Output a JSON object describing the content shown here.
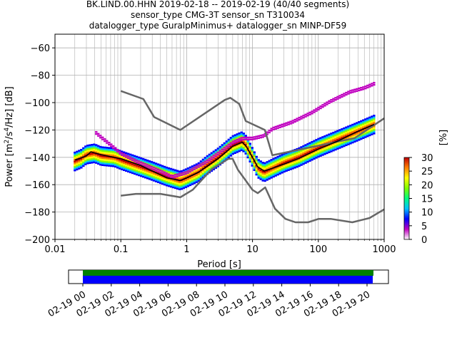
{
  "chart_data": {
    "type": "heatmap",
    "title": [
      "BK.LIND.00.HHN   2019-02-18 -- 2019-02-19  (40/40 segments)",
      "sensor_type CMG-3T sensor_sn T310034",
      "datalogger_type GuralpMinimus+ datalogger_sn MINP-DF59"
    ],
    "xlabel": "Period [s]",
    "ylabel": "Power [$m^2/s^4/Hz$] [dB]",
    "xscale": "log",
    "xlim": [
      0.01,
      1000
    ],
    "ylim": [
      -200,
      -50
    ],
    "grid": true,
    "xticks": [
      {
        "value": 0.01,
        "label": "0.01"
      },
      {
        "value": 0.1,
        "label": "0.1"
      },
      {
        "value": 1,
        "label": "1"
      },
      {
        "value": 10,
        "label": "10"
      },
      {
        "value": 100,
        "label": "100"
      },
      {
        "value": 1000,
        "label": "1000"
      }
    ],
    "yticks": [
      {
        "value": -200,
        "label": "−200"
      },
      {
        "value": -180,
        "label": "−180"
      },
      {
        "value": -160,
        "label": "−160"
      },
      {
        "value": -140,
        "label": "−140"
      },
      {
        "value": -120,
        "label": "−120"
      },
      {
        "value": -100,
        "label": "−100"
      },
      {
        "value": -80,
        "label": "−80"
      },
      {
        "value": -60,
        "label": "−60"
      }
    ],
    "noise_models": [
      {
        "name": "NHNM",
        "color": "#666666",
        "points": [
          [
            0.1,
            -91.5
          ],
          [
            0.22,
            -97.4
          ],
          [
            0.32,
            -110.5
          ],
          [
            0.8,
            -120
          ],
          [
            3.8,
            -98
          ],
          [
            4.6,
            -96.5
          ],
          [
            6.3,
            -101
          ],
          [
            7.9,
            -113.5
          ],
          [
            15.4,
            -120
          ],
          [
            20,
            -138.5
          ],
          [
            354.8,
            -126
          ],
          [
            1000,
            -111.5
          ]
        ]
      },
      {
        "name": "NLNM",
        "color": "#666666",
        "points": [
          [
            0.1,
            -168
          ],
          [
            0.17,
            -166.7
          ],
          [
            0.4,
            -166.7
          ],
          [
            0.8,
            -169.2
          ],
          [
            1.24,
            -163.7
          ],
          [
            2.4,
            -148.6
          ],
          [
            4.3,
            -141.1
          ],
          [
            5,
            -141.1
          ],
          [
            6,
            -149
          ],
          [
            10,
            -163.8
          ],
          [
            12,
            -166.2
          ],
          [
            15.6,
            -162
          ],
          [
            21.9,
            -177.5
          ],
          [
            31.6,
            -185
          ],
          [
            45,
            -187.5
          ],
          [
            70,
            -187.5
          ],
          [
            101,
            -185
          ],
          [
            154,
            -185
          ],
          [
            328,
            -187.5
          ],
          [
            600,
            -184.4
          ],
          [
            1000,
            -178
          ]
        ]
      }
    ],
    "mean_curve": {
      "name": "mean",
      "color": "#000000",
      "points": [
        [
          0.02,
          -142
        ],
        [
          0.03,
          -139
        ],
        [
          0.035,
          -136
        ],
        [
          0.05,
          -138
        ],
        [
          0.1,
          -141
        ],
        [
          0.2,
          -146
        ],
        [
          0.3,
          -150
        ],
        [
          0.5,
          -155
        ],
        [
          0.8,
          -157
        ],
        [
          1,
          -155
        ],
        [
          1.5,
          -151
        ],
        [
          2,
          -147
        ],
        [
          3,
          -141
        ],
        [
          4,
          -136
        ],
        [
          5,
          -132
        ],
        [
          7,
          -129
        ],
        [
          8,
          -132
        ],
        [
          10,
          -140
        ],
        [
          12,
          -147
        ],
        [
          15,
          -150
        ],
        [
          20,
          -148
        ],
        [
          30,
          -145
        ],
        [
          50,
          -141
        ],
        [
          100,
          -134
        ],
        [
          200,
          -128
        ],
        [
          400,
          -121
        ],
        [
          700,
          -116
        ]
      ]
    },
    "psd_density": {
      "units": "%",
      "bands": [
        {
          "name": "main",
          "points": [
            [
              0.02,
              -143
            ],
            [
              0.025,
              -141
            ],
            [
              0.03,
              -138
            ],
            [
              0.04,
              -137
            ],
            [
              0.05,
              -139
            ],
            [
              0.08,
              -140
            ],
            [
              0.1,
              -142
            ],
            [
              0.2,
              -147
            ],
            [
              0.3,
              -150
            ],
            [
              0.5,
              -154
            ],
            [
              0.8,
              -157
            ],
            [
              1,
              -155
            ],
            [
              1.5,
              -151
            ],
            [
              2,
              -146
            ],
            [
              3,
              -140
            ],
            [
              4,
              -135
            ],
            [
              5,
              -131
            ],
            [
              7,
              -128
            ],
            [
              8,
              -131
            ],
            [
              10,
              -140
            ],
            [
              12,
              -148
            ],
            [
              15,
              -151
            ],
            [
              20,
              -148
            ],
            [
              30,
              -144
            ],
            [
              50,
              -140
            ],
            [
              100,
              -133
            ],
            [
              200,
              -127
            ],
            [
              400,
              -121
            ],
            [
              700,
              -116
            ]
          ]
        },
        {
          "name": "upper",
          "points": [
            [
              0.04,
              -122
            ],
            [
              0.05,
              -126
            ],
            [
              0.08,
              -134
            ],
            [
              0.1,
              -138
            ],
            [
              0.2,
              -145
            ],
            [
              0.4,
              -151
            ],
            [
              0.6,
              -155
            ],
            [
              1,
              -152
            ],
            [
              2,
              -144
            ],
            [
              3,
              -138
            ],
            [
              5,
              -130
            ],
            [
              7,
              -127
            ],
            [
              10,
              -127
            ],
            [
              15,
              -125
            ],
            [
              20,
              -120
            ],
            [
              40,
              -115
            ],
            [
              80,
              -108
            ],
            [
              150,
              -100
            ],
            [
              300,
              -93
            ],
            [
              500,
              -90
            ],
            [
              700,
              -87
            ]
          ]
        }
      ]
    },
    "colorbar": {
      "label": "[%]",
      "min": 0,
      "max": 30,
      "ticks": [
        0,
        5,
        10,
        15,
        20,
        25,
        30
      ],
      "colors": [
        "#ffffff",
        "#c000c0",
        "#0000ff",
        "#00c0ff",
        "#00ff80",
        "#80ff00",
        "#ffff00",
        "#ff8000",
        "#c00000"
      ]
    },
    "time_axis": {
      "labels": [
        "02-19 00",
        "02-19 02",
        "02-19 04",
        "02-19 06",
        "02-19 08",
        "02-19 10",
        "02-19 12",
        "02-19 14",
        "02-19 16",
        "02-19 18",
        "02-19 20"
      ],
      "bars": [
        {
          "name": "data-coverage",
          "color": "#008000"
        },
        {
          "name": "psd-segments",
          "color": "#0000ff"
        }
      ]
    }
  }
}
